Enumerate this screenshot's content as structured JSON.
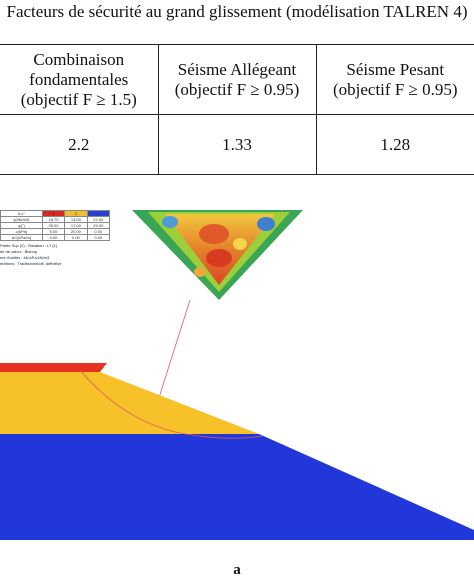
{
  "caption": "Facteurs de sécurité au grand glissement (modélisation TALREN 4)",
  "table": {
    "headers": [
      [
        "Combinaison",
        "fondamentales",
        "(objectif F ≥ 1.5)"
      ],
      [
        "Séisme Allégeant",
        "(objectif F ≥ 0.95)"
      ],
      [
        "Séisme Pesant",
        "(objectif F ≥ 0.95)"
      ]
    ],
    "values": [
      "2.2",
      "1.33",
      "1.28"
    ]
  },
  "figure": {
    "legend": {
      "header": [
        "d n°",
        "1",
        "2",
        "3"
      ],
      "rows": [
        [
          "γ(kN/m3)",
          "18.70",
          "13.00",
          "22.00"
        ],
        [
          "φ(°)",
          "25.00",
          "17.00",
          "29.00"
        ],
        [
          "c(kPa)",
          "5.00",
          "20.00",
          "0.00"
        ],
        [
          "ΔC(kPa/m)",
          "0.00",
          "0.00",
          "0.00"
        ]
      ],
      "notes": [
        "Partie Sup (0) ; Situation : LT (1)",
        "de de calcul : Bishop",
        "me d'unités : kN,kPa,kN/m3",
        "érations : Traditionnel/dit. définitive"
      ]
    },
    "layer_colors": {
      "top": "#e63320",
      "middle": "#f6c129",
      "bottom": "#2137d9"
    },
    "sub_label": "a"
  }
}
